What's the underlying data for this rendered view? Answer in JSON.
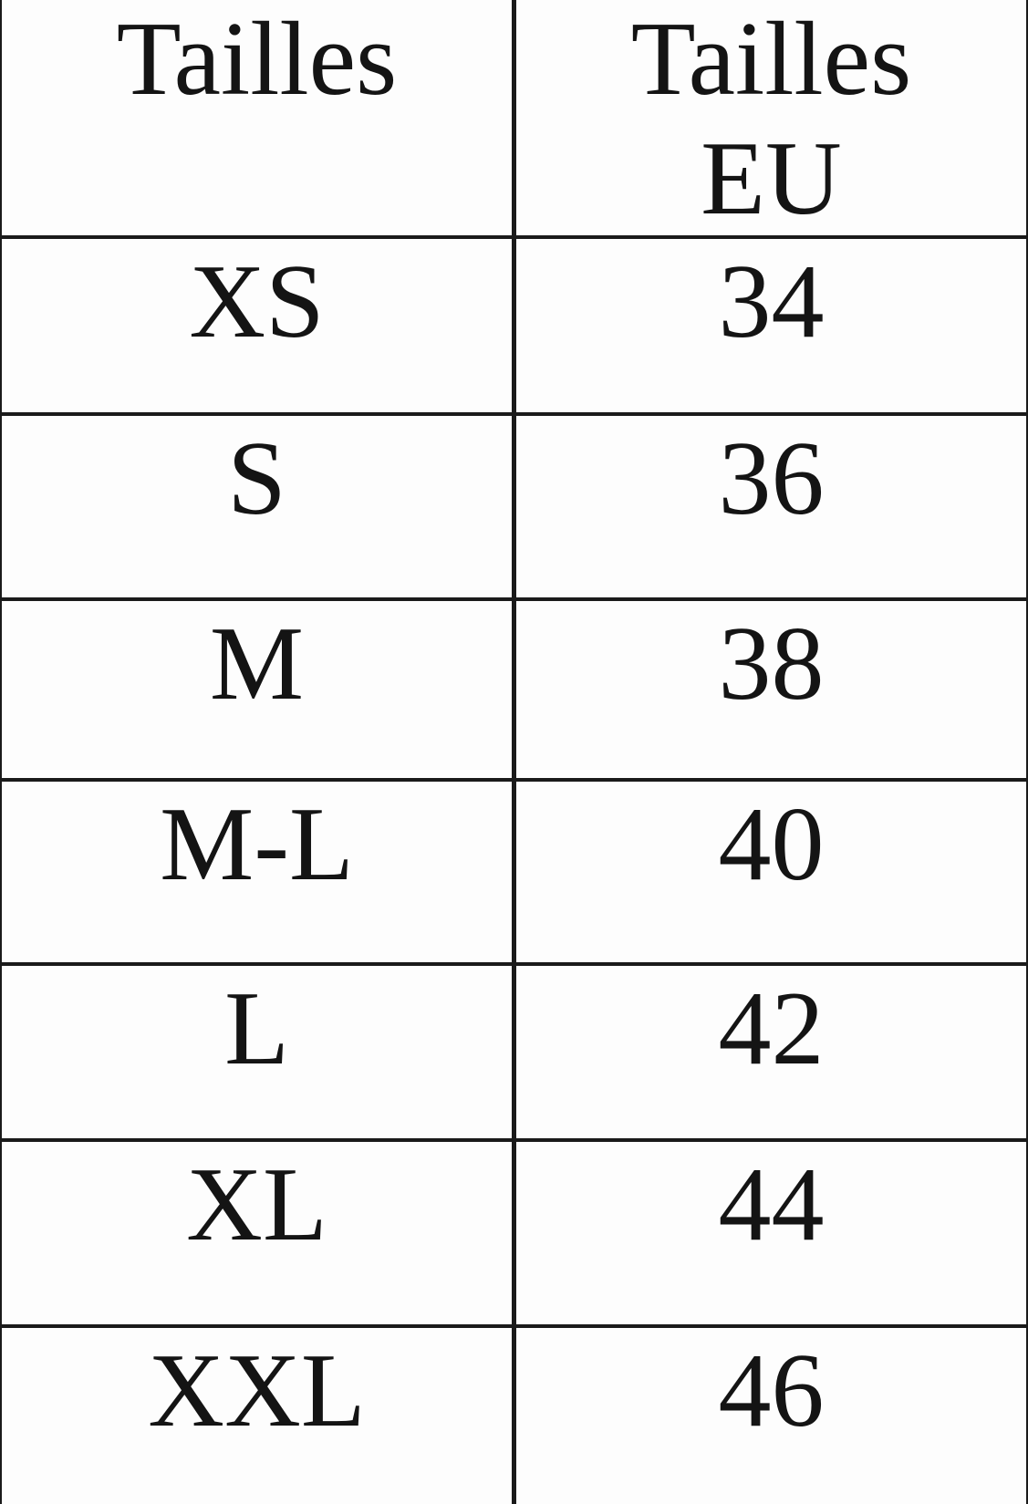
{
  "table": {
    "header": {
      "col1": "Tailles",
      "col2_line1": "Tailles",
      "col2_line2": "EU"
    },
    "rows": [
      {
        "size": "XS",
        "eu": "34"
      },
      {
        "size": "S",
        "eu": "36"
      },
      {
        "size": "M",
        "eu": "38"
      },
      {
        "size": "M-L",
        "eu": "40"
      },
      {
        "size": "L",
        "eu": "42"
      },
      {
        "size": "XL",
        "eu": "44"
      },
      {
        "size": "XXL",
        "eu": "46"
      }
    ]
  },
  "colors": {
    "background": "#fdfdfd",
    "text": "#141414",
    "border": "#1a1a1a"
  }
}
